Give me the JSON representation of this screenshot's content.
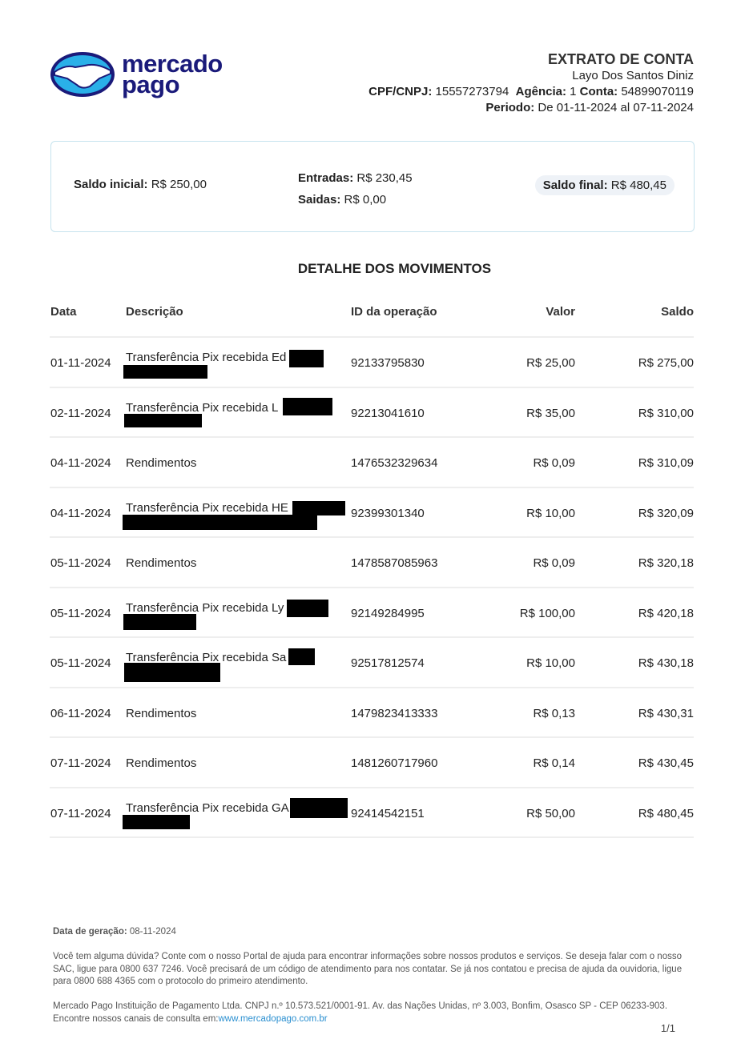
{
  "logo": {
    "line1": "mercado",
    "line2": "pago"
  },
  "header": {
    "title": "EXTRATO DE CONTA",
    "name": "Layo Dos Santos Diniz",
    "cpf_label": "CPF/CNPJ:",
    "cpf": "15557273794",
    "agencia_label": "Agência:",
    "agencia": "1",
    "conta_label": "Conta:",
    "conta": "54899070119",
    "periodo_label": "Periodo:",
    "periodo": "De 01-11-2024 al 07-11-2024"
  },
  "summary": {
    "saldo_inicial_label": "Saldo inicial:",
    "saldo_inicial": "R$ 250,00",
    "entradas_label": "Entradas:",
    "entradas": "R$ 230,45",
    "saidas_label": "Saidas:",
    "saidas": "R$ 0,00",
    "saldo_final_label": "Saldo final:",
    "saldo_final": "R$ 480,45"
  },
  "section_title": "DETALHE DOS MOVIMENTOS",
  "columns": [
    "Data",
    "Descrição",
    "ID da operação",
    "Valor",
    "Saldo"
  ],
  "rows": [
    {
      "date": "01-11-2024",
      "desc": "Transferência Pix recebida Ed",
      "id": "92133795830",
      "value": "R$ 25,00",
      "balance": "R$ 275,00"
    },
    {
      "date": "02-11-2024",
      "desc": "Transferência Pix recebida L",
      "id": "92213041610",
      "value": "R$ 35,00",
      "balance": "R$ 310,00"
    },
    {
      "date": "04-11-2024",
      "desc": "Rendimentos",
      "id": "1476532329634",
      "value": "R$ 0,09",
      "balance": "R$ 310,09"
    },
    {
      "date": "04-11-2024",
      "desc": "Transferência Pix recebida HE",
      "id": "92399301340",
      "value": "R$ 10,00",
      "balance": "R$ 320,09"
    },
    {
      "date": "05-11-2024",
      "desc": "Rendimentos",
      "id": "1478587085963",
      "value": "R$ 0,09",
      "balance": "R$ 320,18"
    },
    {
      "date": "05-11-2024",
      "desc": "Transferência Pix recebida Ly",
      "id": "92149284995",
      "value": "R$ 100,00",
      "balance": "R$ 420,18"
    },
    {
      "date": "05-11-2024",
      "desc": "Transferência Pix recebida Sa",
      "id": "92517812574",
      "value": "R$ 10,00",
      "balance": "R$ 430,18"
    },
    {
      "date": "06-11-2024",
      "desc": "Rendimentos",
      "id": "1479823413333",
      "value": "R$ 0,13",
      "balance": "R$ 430,31"
    },
    {
      "date": "07-11-2024",
      "desc": "Rendimentos",
      "id": "1481260717960",
      "value": "R$ 0,14",
      "balance": "R$ 430,45"
    },
    {
      "date": "07-11-2024",
      "desc": "Transferência Pix recebida GA",
      "id": "92414542151",
      "value": "R$ 50,00",
      "balance": "R$ 480,45"
    }
  ],
  "footer": {
    "date_label": "Data de geração:",
    "date": "08-11-2024",
    "help": "Você tem alguma dúvida? Conte com o nosso Portal de ajuda para encontrar informações sobre nossos produtos e serviços. Se deseja falar com o nosso SAC, ligue para 0800 637 7246. Você precisará de um código de atendimento para nos contatar. Se já nos contatou e precisa de ajuda da ouvidoria, ligue para 0800 688 4365 com o protocolo do primeiro atendimento.",
    "company": "Mercado Pago Instituição de Pagamento Ltda. CNPJ n.º 10.573.521/0001-91. Av. das Nações Unidas, nº 3.003, Bonfim, Osasco SP - CEP 06233-903. Encontre nossos canais de consulta em:",
    "link": "www.mercadopago.com.br",
    "page": "1/1"
  },
  "colors": {
    "brand": "#1a1a7a",
    "logo_blue": "#2ab0e8",
    "link": "#2a8fd0"
  }
}
